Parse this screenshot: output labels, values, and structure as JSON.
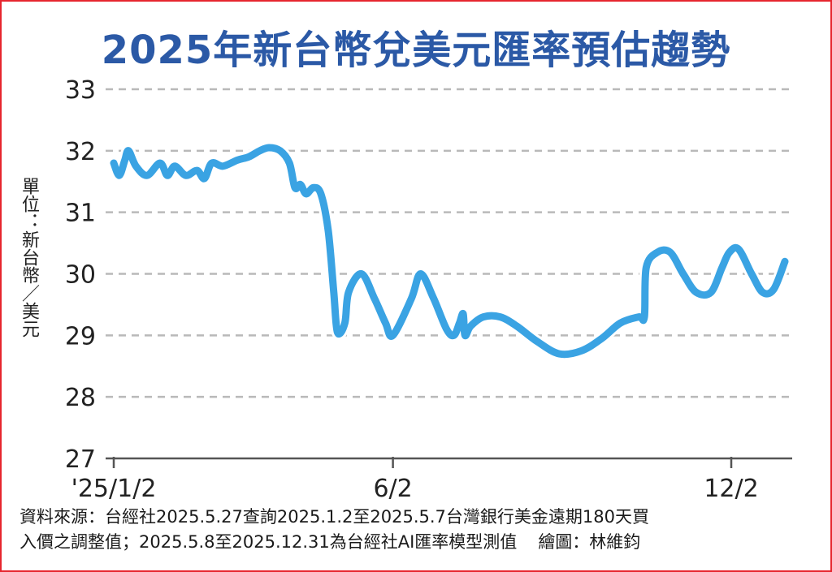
{
  "chart_data": {
    "type": "line",
    "title": "2025年新台幣兌美元匯率預估趨勢",
    "ylabel": "單位：新台幣／美元",
    "xlabel": "",
    "ylim": [
      27,
      33
    ],
    "yticks": [
      "33",
      "32",
      "31",
      "30",
      "29",
      "28",
      "27"
    ],
    "xticks": [
      "'25/1/2",
      "6/2",
      "12/2"
    ],
    "grid": true,
    "line_color": "#3aa3e3",
    "series": [
      {
        "values": [
          {
            "x": "2025-01-02",
            "y": 31.8
          },
          {
            "x": "2025-01-05",
            "y": 31.6
          },
          {
            "x": "2025-01-08",
            "y": 31.85
          },
          {
            "x": "2025-01-10",
            "y": 32.0
          },
          {
            "x": "2025-01-14",
            "y": 31.75
          },
          {
            "x": "2025-01-20",
            "y": 31.6
          },
          {
            "x": "2025-01-27",
            "y": 31.8
          },
          {
            "x": "2025-01-31",
            "y": 31.6
          },
          {
            "x": "2025-02-04",
            "y": 31.75
          },
          {
            "x": "2025-02-10",
            "y": 31.6
          },
          {
            "x": "2025-02-16",
            "y": 31.68
          },
          {
            "x": "2025-02-20",
            "y": 31.55
          },
          {
            "x": "2025-02-24",
            "y": 31.8
          },
          {
            "x": "2025-03-02",
            "y": 31.75
          },
          {
            "x": "2025-03-10",
            "y": 31.85
          },
          {
            "x": "2025-03-16",
            "y": 31.9
          },
          {
            "x": "2025-03-22",
            "y": 32.0
          },
          {
            "x": "2025-03-27",
            "y": 32.05
          },
          {
            "x": "2025-04-02",
            "y": 32.0
          },
          {
            "x": "2025-04-07",
            "y": 31.8
          },
          {
            "x": "2025-04-10",
            "y": 31.4
          },
          {
            "x": "2025-04-13",
            "y": 31.45
          },
          {
            "x": "2025-04-16",
            "y": 31.3
          },
          {
            "x": "2025-04-20",
            "y": 31.4
          },
          {
            "x": "2025-04-24",
            "y": 31.3
          },
          {
            "x": "2025-04-28",
            "y": 30.7
          },
          {
            "x": "2025-05-01",
            "y": 29.7
          },
          {
            "x": "2025-05-03",
            "y": 29.05
          },
          {
            "x": "2025-05-07",
            "y": 29.2
          },
          {
            "x": "2025-05-09",
            "y": 29.7
          },
          {
            "x": "2025-05-16",
            "y": 30.0
          },
          {
            "x": "2025-05-23",
            "y": 29.6
          },
          {
            "x": "2025-05-29",
            "y": 29.2
          },
          {
            "x": "2025-06-02",
            "y": 29.0
          },
          {
            "x": "2025-06-12",
            "y": 29.6
          },
          {
            "x": "2025-06-17",
            "y": 30.0
          },
          {
            "x": "2025-06-24",
            "y": 29.6
          },
          {
            "x": "2025-07-01",
            "y": 29.1
          },
          {
            "x": "2025-07-05",
            "y": 29.0
          },
          {
            "x": "2025-07-08",
            "y": 29.2
          },
          {
            "x": "2025-07-10",
            "y": 29.35
          },
          {
            "x": "2025-07-11",
            "y": 29.0
          },
          {
            "x": "2025-07-14",
            "y": 29.15
          },
          {
            "x": "2025-07-21",
            "y": 29.3
          },
          {
            "x": "2025-07-30",
            "y": 29.3
          },
          {
            "x": "2025-08-08",
            "y": 29.15
          },
          {
            "x": "2025-08-19",
            "y": 28.9
          },
          {
            "x": "2025-08-31",
            "y": 28.7
          },
          {
            "x": "2025-09-12",
            "y": 28.75
          },
          {
            "x": "2025-09-23",
            "y": 28.95
          },
          {
            "x": "2025-10-03",
            "y": 29.2
          },
          {
            "x": "2025-10-13",
            "y": 29.3
          },
          {
            "x": "2025-10-16",
            "y": 29.3
          },
          {
            "x": "2025-10-17",
            "y": 30.1
          },
          {
            "x": "2025-10-23",
            "y": 30.35
          },
          {
            "x": "2025-10-30",
            "y": 30.35
          },
          {
            "x": "2025-11-06",
            "y": 30.0
          },
          {
            "x": "2025-11-13",
            "y": 29.7
          },
          {
            "x": "2025-11-21",
            "y": 29.7
          },
          {
            "x": "2025-11-27",
            "y": 30.1
          },
          {
            "x": "2025-12-01",
            "y": 30.35
          },
          {
            "x": "2025-12-06",
            "y": 30.4
          },
          {
            "x": "2025-12-13",
            "y": 30.0
          },
          {
            "x": "2025-12-19",
            "y": 29.7
          },
          {
            "x": "2025-12-25",
            "y": 29.75
          },
          {
            "x": "2025-12-31",
            "y": 30.2
          }
        ]
      }
    ]
  },
  "footer": {
    "source_line1": "資料來源：台經社2025.5.27查詢2025.1.2至2025.5.7台灣銀行美金遠期180天買",
    "source_line2": "入價之調整值；2025.5.8至2025.12.31為台經社AI匯率模型測值",
    "credit": "繪圖：林維鈞"
  },
  "colors": {
    "title": "#2b59a6",
    "border": "#e6252e",
    "grid": "#b9b9b9",
    "line": "#3aa3e3"
  }
}
